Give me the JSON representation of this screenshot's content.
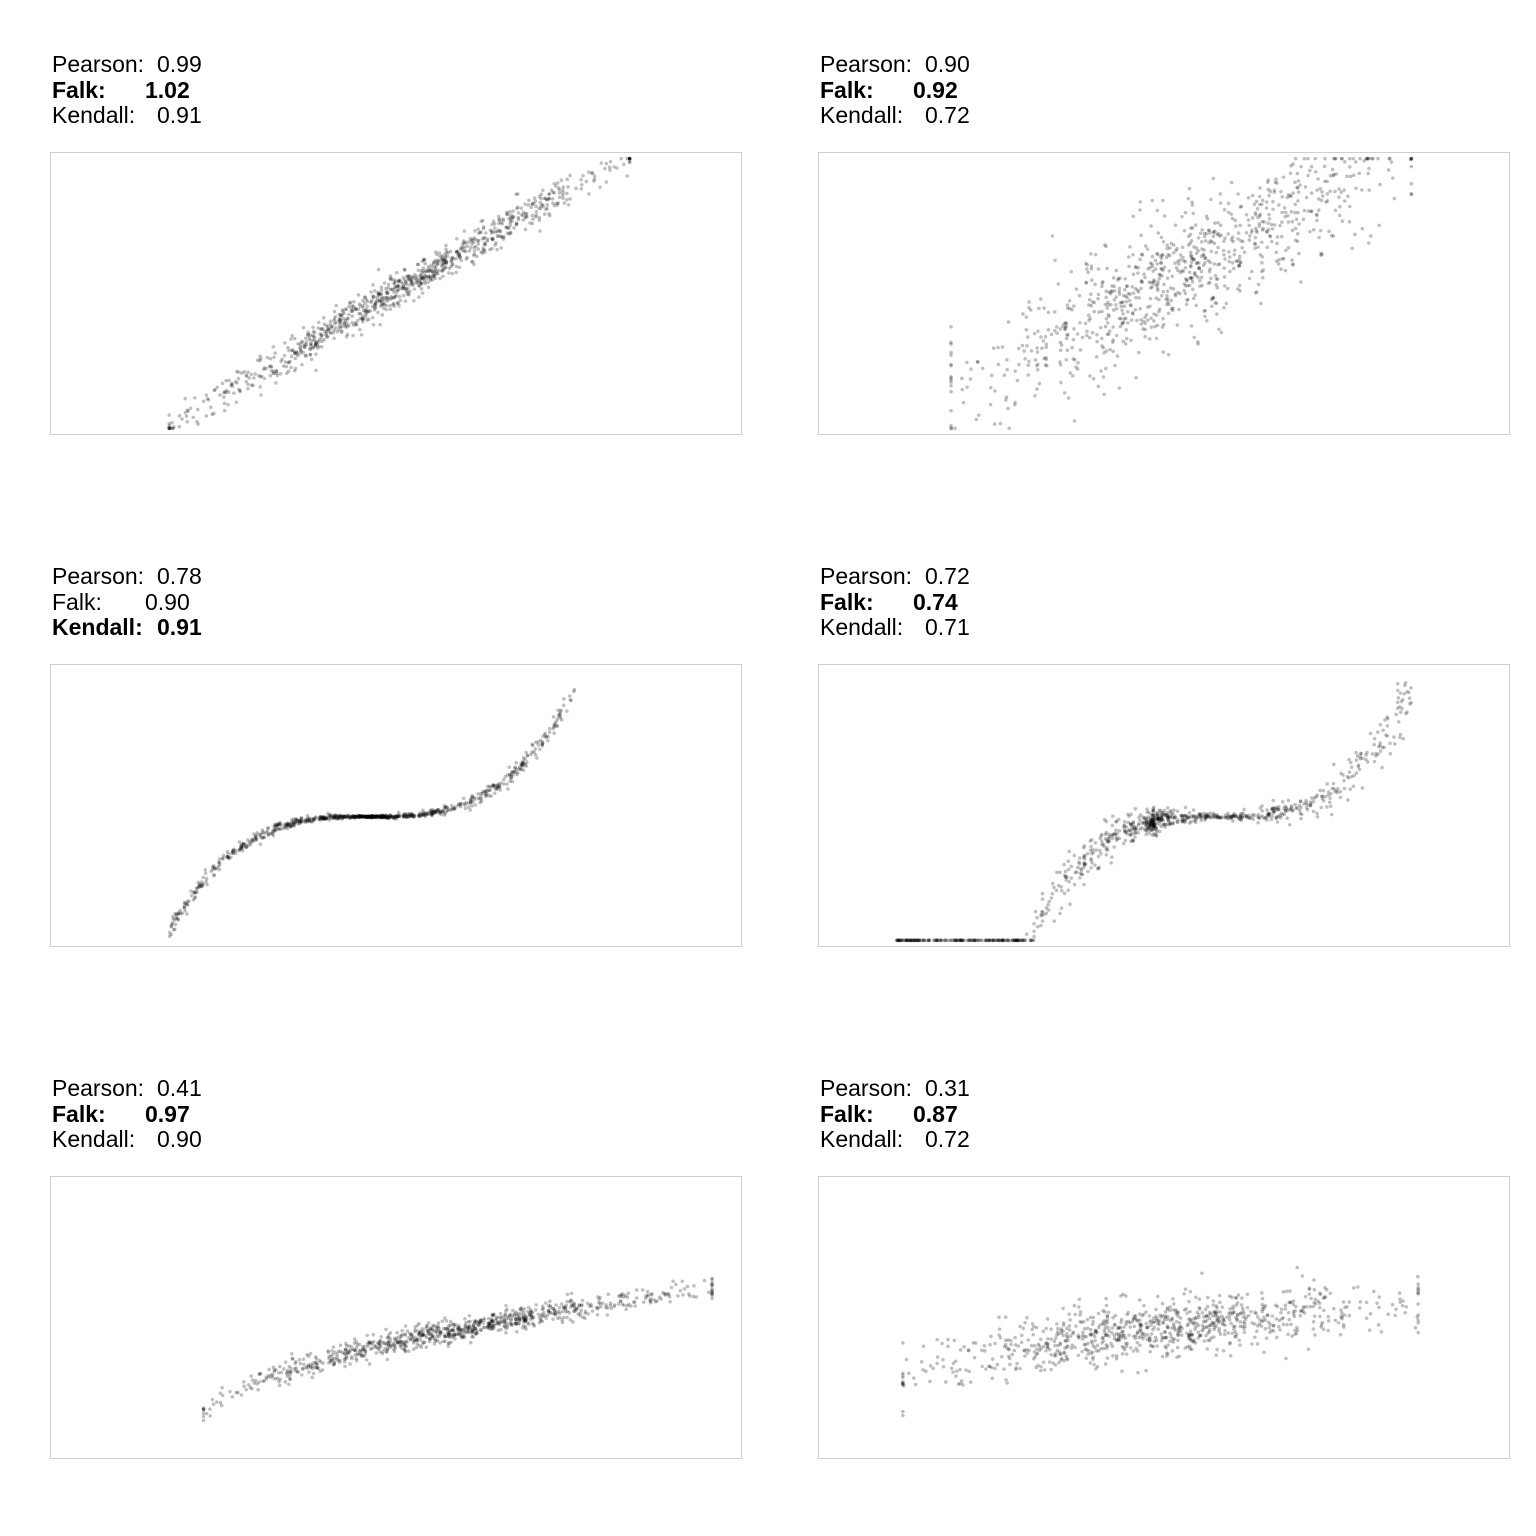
{
  "chart_data": [
    {
      "type": "scatter",
      "id": "p1",
      "stats": [
        {
          "label": "Pearson:",
          "value": "0.99",
          "bold": false
        },
        {
          "label": "Falk:",
          "value": "1.02",
          "bold": true
        },
        {
          "label": "Kendall:",
          "value": "0.91",
          "bold": false
        }
      ],
      "shape": "linear",
      "spread": 0.03,
      "xrange": [
        0.17,
        0.84
      ]
    },
    {
      "type": "scatter",
      "id": "p2",
      "stats": [
        {
          "label": "Pearson:",
          "value": "0.90",
          "bold": false
        },
        {
          "label": "Falk:",
          "value": "0.92",
          "bold": true
        },
        {
          "label": "Kendall:",
          "value": "0.72",
          "bold": false
        }
      ],
      "shape": "linear_wide",
      "spread": 0.11,
      "xrange": [
        0.19,
        0.86
      ]
    },
    {
      "type": "scatter",
      "id": "p3",
      "stats": [
        {
          "label": "Pearson:",
          "value": "0.78",
          "bold": false
        },
        {
          "label": "Falk:",
          "value": "0.90",
          "bold": false
        },
        {
          "label": "Kendall:",
          "value": "0.91",
          "bold": true
        }
      ],
      "shape": "cubic",
      "spread": 0.02,
      "xrange": [
        0.17,
        0.76
      ]
    },
    {
      "type": "scatter",
      "id": "p4",
      "stats": [
        {
          "label": "Pearson:",
          "value": "0.72",
          "bold": false
        },
        {
          "label": "Falk:",
          "value": "0.74",
          "bold": true
        },
        {
          "label": "Kendall:",
          "value": "0.71",
          "bold": false
        }
      ],
      "shape": "cubic_noisy",
      "spread": 0.06,
      "xrange": [
        0.11,
        0.86
      ]
    },
    {
      "type": "scatter",
      "id": "p5",
      "stats": [
        {
          "label": "Pearson:",
          "value": "0.41",
          "bold": false
        },
        {
          "label": "Falk:",
          "value": "0.97",
          "bold": true
        },
        {
          "label": "Kendall:",
          "value": "0.90",
          "bold": false
        }
      ],
      "shape": "concave",
      "spread": 0.02,
      "xrange": [
        0.22,
        0.96
      ]
    },
    {
      "type": "scatter",
      "id": "p6",
      "stats": [
        {
          "label": "Pearson:",
          "value": "0.31",
          "bold": false
        },
        {
          "label": "Falk:",
          "value": "0.87",
          "bold": true
        },
        {
          "label": "Kendall:",
          "value": "0.72",
          "bold": false
        }
      ],
      "shape": "concave_noisy",
      "spread": 0.05,
      "xrange": [
        0.12,
        0.87
      ]
    }
  ]
}
